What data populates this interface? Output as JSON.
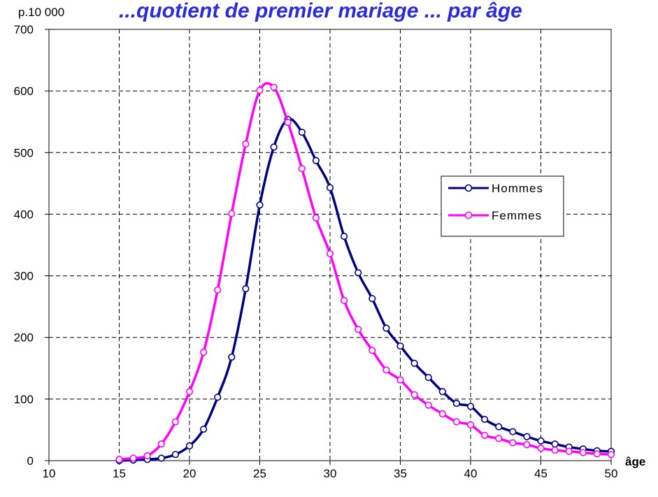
{
  "chart_data": {
    "type": "line",
    "title": "...quotient de premier mariage ... par âge",
    "ylabel": "p.10 000",
    "xlabel": "âge",
    "xlim": [
      10,
      50
    ],
    "ylim": [
      0,
      700
    ],
    "x_ticks": [
      10,
      15,
      20,
      25,
      30,
      35,
      40,
      45,
      50
    ],
    "y_ticks": [
      0,
      100,
      200,
      300,
      400,
      500,
      600,
      700
    ],
    "grid": true,
    "legend_position": "right",
    "series": [
      {
        "name": "Hommes",
        "color": "#000080",
        "x": [
          15,
          16,
          17,
          18,
          19,
          20,
          21,
          22,
          23,
          24,
          25,
          26,
          27,
          28,
          29,
          30,
          31,
          32,
          33,
          34,
          35,
          36,
          37,
          38,
          39,
          40,
          41,
          42,
          43,
          44,
          45,
          46,
          47,
          48,
          49,
          50
        ],
        "values": [
          0,
          1,
          2,
          4,
          10,
          24,
          51,
          103,
          168,
          279,
          415,
          509,
          554,
          533,
          487,
          443,
          364,
          305,
          263,
          215,
          186,
          158,
          135,
          112,
          93,
          88,
          67,
          55,
          47,
          39,
          32,
          27,
          22,
          19,
          16,
          15
        ]
      },
      {
        "name": "Femmes",
        "color": "#ff00ff",
        "x": [
          15,
          16,
          17,
          18,
          19,
          20,
          21,
          22,
          23,
          24,
          25,
          26,
          27,
          28,
          29,
          30,
          31,
          32,
          33,
          34,
          35,
          36,
          37,
          38,
          39,
          40,
          41,
          42,
          43,
          44,
          45,
          46,
          47,
          48,
          49,
          50
        ],
        "values": [
          2,
          4,
          8,
          27,
          63,
          112,
          176,
          277,
          401,
          514,
          601,
          606,
          549,
          474,
          394,
          336,
          260,
          213,
          179,
          147,
          131,
          107,
          90,
          76,
          63,
          58,
          41,
          36,
          29,
          26,
          20,
          17,
          15,
          13,
          11,
          10
        ]
      }
    ]
  }
}
